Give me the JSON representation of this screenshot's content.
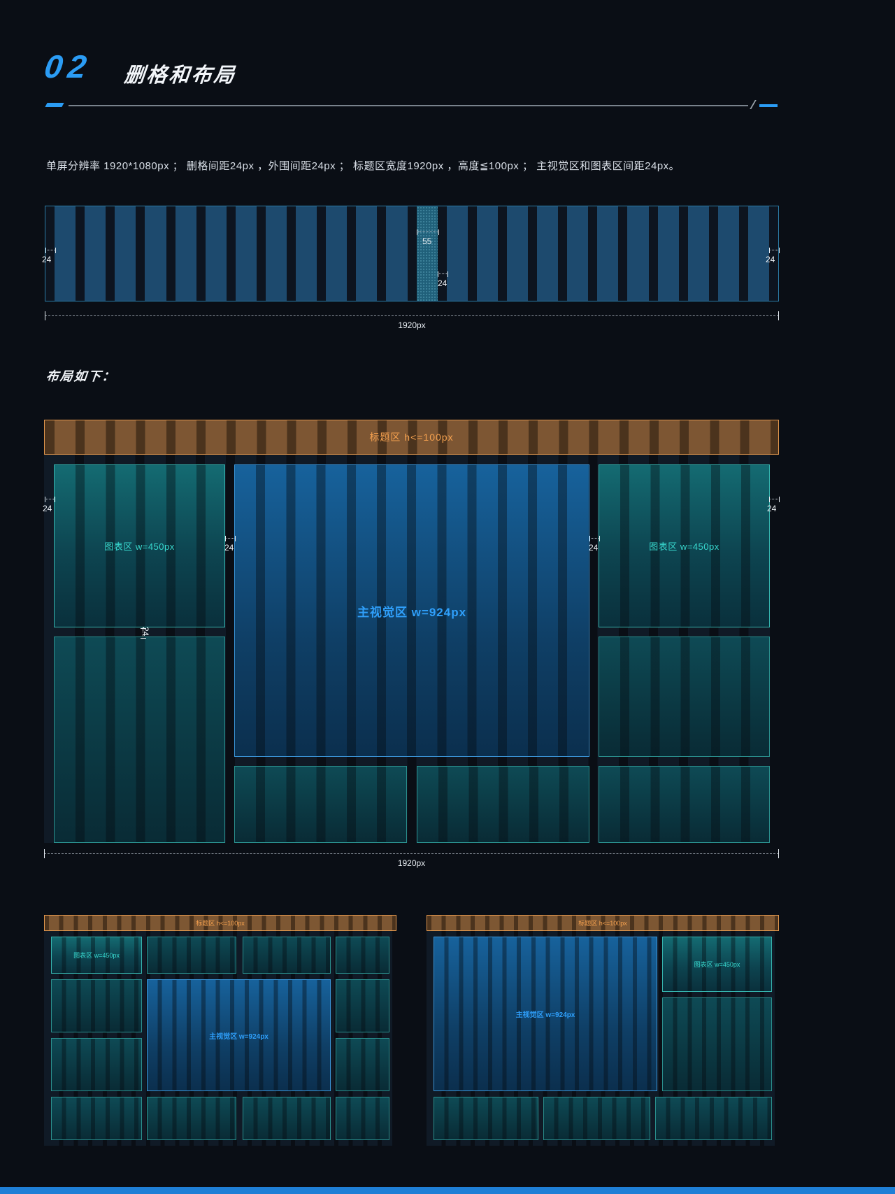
{
  "header": {
    "number": "02",
    "title": "删格和布局"
  },
  "description": "单屏分辨率 1920*1080px ；  删格间距24px ，外围间距24px ；  标题区宽度1920px ，高度≦100px ；  主视觉区和图表区间距24px。",
  "layout_heading": "布局如下：",
  "grid": {
    "column_count": 24,
    "highlight_index": 12
  },
  "measurements": {
    "margin": "24",
    "gutter": "24",
    "column": "55",
    "total": "1920px"
  },
  "layout": {
    "title_bar": "标题区 h<=100px",
    "chart_area": "图表区 w=450px",
    "main_area": "主视觉区 w=924px"
  },
  "colors": {
    "accent_blue": "#2b9cf4",
    "grid_column_blue": "#1d4a6e",
    "band_orange": "#f5a14f",
    "chart_teal": "#38d9cf",
    "main_blue": "#2f9ffa"
  }
}
